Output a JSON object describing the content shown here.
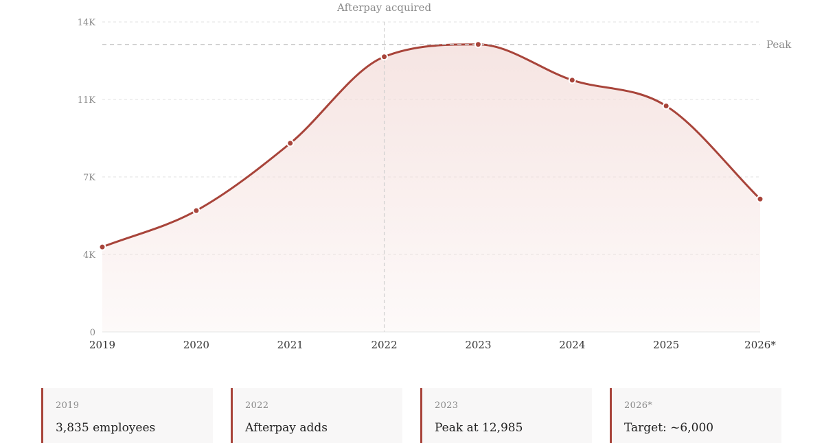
{
  "chart_data": {
    "type": "area",
    "categories": [
      "2019",
      "2020",
      "2021",
      "2022",
      "2023",
      "2024",
      "2025",
      "2026*"
    ],
    "values": [
      3835,
      5477,
      8521,
      12428,
      12985,
      11372,
      10205,
      6000
    ],
    "y_ticks": [
      "0",
      "4K",
      "7K",
      "11K",
      "14K"
    ],
    "y_tick_values": [
      0,
      3500,
      7000,
      10500,
      14000
    ],
    "ylim": [
      0,
      14000
    ],
    "grid": true,
    "annotations": {
      "event": {
        "label": "Afterpay acquired",
        "x": "2022"
      },
      "peak": {
        "label": "Peak",
        "y": 12985
      }
    },
    "colors": {
      "line": "#a8443a",
      "fill": "#f3dcd9",
      "grid": "#e2e2e2"
    }
  },
  "cards": [
    {
      "year": "2019",
      "text": "3,835 employees"
    },
    {
      "year": "2022",
      "text": "Afterpay adds"
    },
    {
      "year": "2023",
      "text": "Peak at 12,985"
    },
    {
      "year": "2026*",
      "text": "Target: ~6,000"
    }
  ]
}
